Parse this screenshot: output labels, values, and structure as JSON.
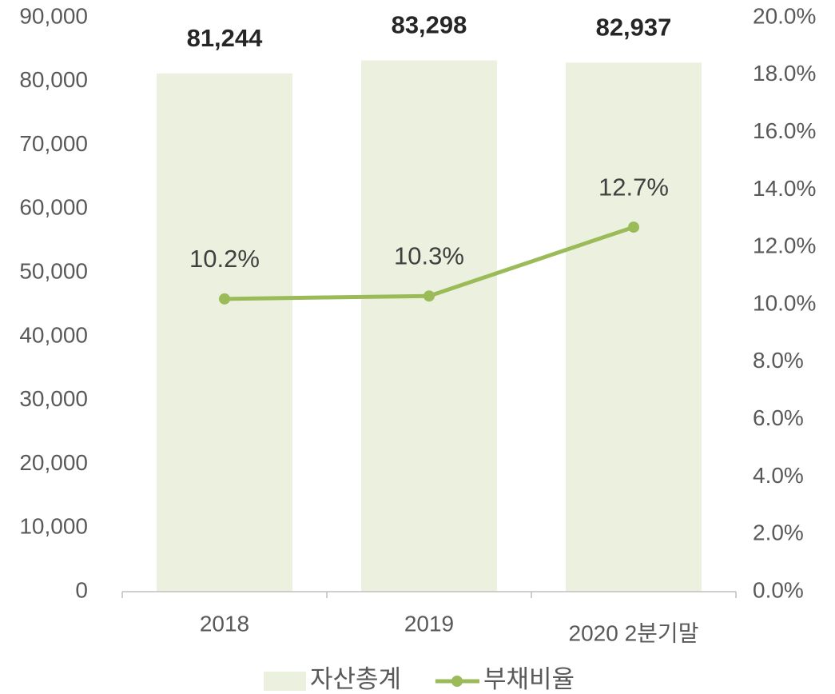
{
  "chart_data": {
    "type": "bar",
    "categories": [
      "2018",
      "2019",
      "2020 2분기말"
    ],
    "series": [
      {
        "name": "자산총계",
        "type": "bar",
        "color": "#ebf1de",
        "values": [
          81244,
          83298,
          82937
        ],
        "value_labels": [
          "81,244",
          "83,298",
          "82,937"
        ]
      },
      {
        "name": "부채비율",
        "type": "line",
        "axis": "y2",
        "color": "#9bbb59",
        "values": [
          10.2,
          10.3,
          12.7
        ],
        "value_labels": [
          "10.2%",
          "10.3%",
          "12.7%"
        ]
      }
    ],
    "ylim": [
      0,
      90000
    ],
    "yticks": [
      0,
      {
        "value": 10000,
        "label": "10,000"
      },
      {
        "value": 20000,
        "label": "20,000"
      },
      {
        "value": 30000,
        "label": "30,000"
      },
      {
        "value": 40000,
        "label": "40,000"
      },
      {
        "value": 50000,
        "label": "50,000"
      },
      {
        "value": 60000,
        "label": "60,000"
      },
      {
        "value": 70000,
        "label": "70,000"
      },
      {
        "value": 80000,
        "label": "80,000"
      },
      {
        "value": 90000,
        "label": "90,000"
      }
    ],
    "y2lim": [
      0,
      20
    ],
    "y2ticks": [
      {
        "value": 0,
        "label": "0.0%"
      },
      {
        "value": 2,
        "label": "2.0%"
      },
      {
        "value": 4,
        "label": "4.0%"
      },
      {
        "value": 6,
        "label": "6.0%"
      },
      {
        "value": 8,
        "label": "8.0%"
      },
      {
        "value": 10,
        "label": "10.0%"
      },
      {
        "value": 12,
        "label": "12.0%"
      },
      {
        "value": 14,
        "label": "14.0%"
      },
      {
        "value": 16,
        "label": "16.0%"
      },
      {
        "value": 18,
        "label": "18.0%"
      },
      {
        "value": 20,
        "label": "20.0%"
      }
    ],
    "grid": false,
    "legend": "bottom"
  }
}
